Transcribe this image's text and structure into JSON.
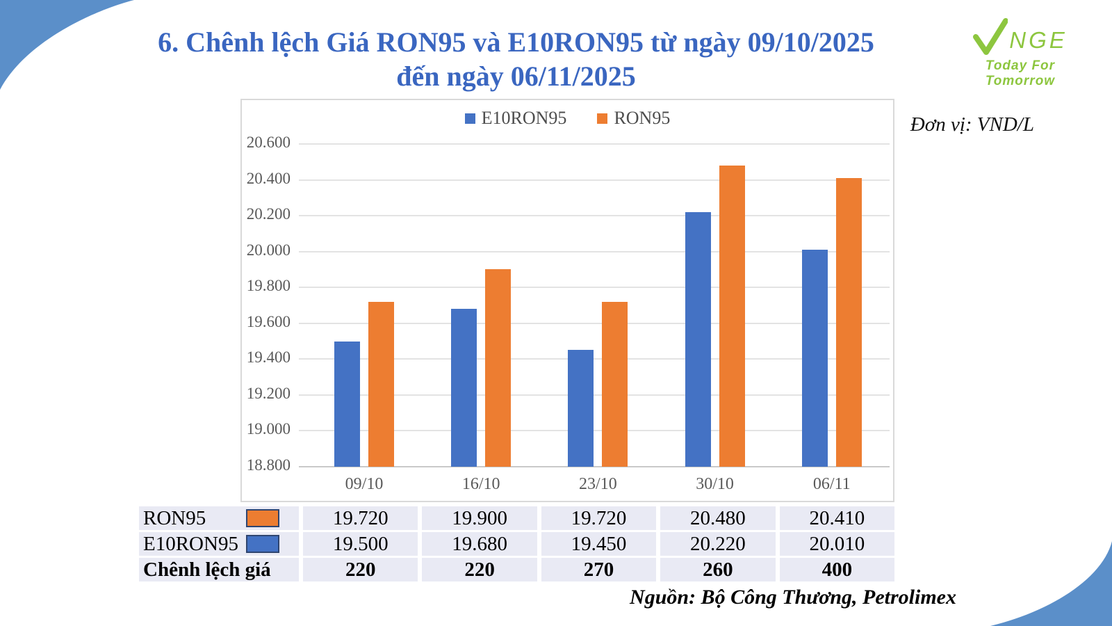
{
  "page": {
    "title_line1": "6. Chênh lệch Giá RON95 và E10RON95 từ ngày 09/10/2025",
    "title_line2": "đến ngày 06/11/2025",
    "unit_label": "Đơn vị: VND/L",
    "source": "Nguồn: Bộ Công Thương, Petrolimex"
  },
  "logo": {
    "name": "NGE",
    "tagline": "Today For Tomorrow"
  },
  "colors": {
    "title": "#3A66C0",
    "swoosh": "#5B8FC9",
    "e10ron95_blue": "#4472C4",
    "ron95_orange": "#ED7D31",
    "table_bg": "#E9EAF4",
    "logo_green": "#8DC63F"
  },
  "chart_data": {
    "type": "bar",
    "title": "Chênh lệch Giá RON95 và E10RON95 từ ngày 09/10/2025 đến ngày 06/11/2025",
    "xlabel": "",
    "ylabel": "VND/L",
    "categories": [
      "09/10",
      "16/10",
      "23/10",
      "30/10",
      "06/11"
    ],
    "series": [
      {
        "name": "E10RON95",
        "color": "#4472C4",
        "values": [
          19500,
          19680,
          19450,
          20220,
          20010
        ]
      },
      {
        "name": "RON95",
        "color": "#ED7D31",
        "values": [
          19720,
          19900,
          19720,
          20480,
          20410
        ]
      }
    ],
    "ylim": [
      18800,
      20600
    ],
    "ytick_step": 200,
    "ytick_labels": [
      "18.800",
      "19.000",
      "19.200",
      "19.400",
      "19.600",
      "19.800",
      "20.000",
      "20.200",
      "20.400",
      "20.600"
    ],
    "grid": true,
    "legend_position": "top-center"
  },
  "table": {
    "rows": [
      {
        "label": "RON95",
        "swatch": "#ED7D31",
        "bold": false,
        "values": [
          "19.720",
          "19.900",
          "19.720",
          "20.480",
          "20.410"
        ]
      },
      {
        "label": "E10RON95",
        "swatch": "#4472C4",
        "bold": false,
        "values": [
          "19.500",
          "19.680",
          "19.450",
          "20.220",
          "20.010"
        ]
      },
      {
        "label": "Chênh lệch giá",
        "swatch": null,
        "bold": true,
        "values": [
          "220",
          "220",
          "270",
          "260",
          "400"
        ]
      }
    ]
  }
}
